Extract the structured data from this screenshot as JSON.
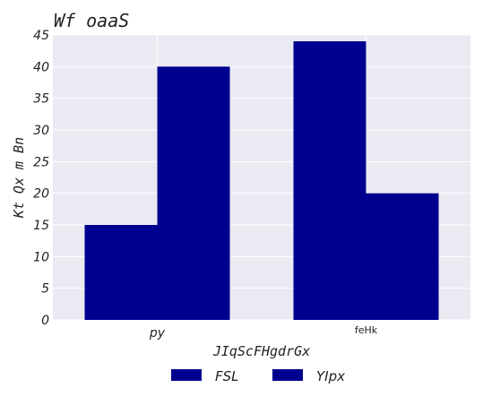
{
  "chart_data": {
    "type": "bar",
    "title": "Wf  oaaS",
    "xlabel": "JIqScFHgdrGx",
    "ylabel": "Kt  Qx m Bn",
    "categories": [
      "py",
      "feHk"
    ],
    "series": [
      {
        "name": "FSL",
        "values": [
          15,
          44
        ],
        "color": "#000090"
      },
      {
        "name": "YIpx",
        "values": [
          40,
          20
        ],
        "color": "#000090"
      }
    ],
    "ylim": [
      0,
      45
    ],
    "yticks": [
      0,
      5,
      10,
      15,
      20,
      25,
      30,
      35,
      40,
      45
    ],
    "grid": true,
    "legend_position": "bottom-center",
    "colors": {
      "background": "#eaeaf2",
      "grid": "#ffffff",
      "bar": "#000090"
    }
  }
}
